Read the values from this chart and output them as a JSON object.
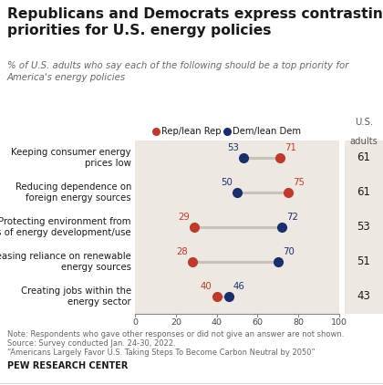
{
  "title": "Republicans and Democrats express contrasting\npriorities for U.S. energy policies",
  "subtitle": "% of U.S. adults who say each of the following should be a top priority for\nAmerica's energy policies",
  "categories": [
    "Keeping consumer energy\nprices low",
    "Reducing dependence on\nforeign energy sources",
    "Protecting environment from\neffects of energy development/use",
    "Increasing reliance on renewable\nenergy sources",
    "Creating jobs within the\nenergy sector"
  ],
  "rep_values": [
    71,
    75,
    29,
    28,
    40
  ],
  "dem_values": [
    53,
    50,
    72,
    70,
    46
  ],
  "us_adults": [
    61,
    61,
    53,
    51,
    43
  ],
  "rep_color": "#c0392b",
  "dem_color": "#1a2e6e",
  "connector_color": "#c8c2ba",
  "note_line1": "Note: Respondents who gave other responses or did not give an answer are not shown.",
  "note_line2": "Source: Survey conducted Jan. 24-30, 2022.",
  "note_line3": "“Americans Largely Favor U.S. Taking Steps To Become Carbon Neutral by 2050”",
  "footer": "PEW RESEARCH CENTER",
  "xticks": [
    0,
    20,
    40,
    60,
    80,
    100
  ],
  "bg_color": "#ffffff",
  "row_bg_color": "#ede9e2",
  "right_panel_bg": "#ede9e2",
  "title_color": "#1a1a1a",
  "subtitle_color": "#666666",
  "label_color": "#1a1a1a",
  "note_color": "#666666",
  "tick_color": "#888888"
}
